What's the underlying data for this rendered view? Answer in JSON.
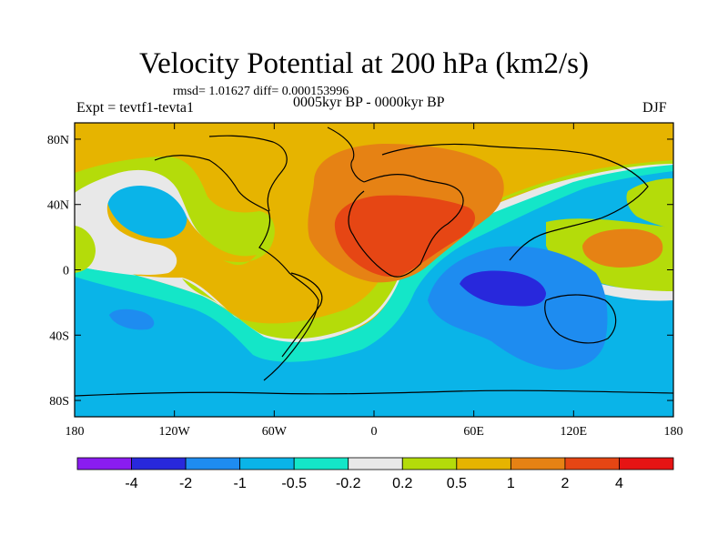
{
  "header": {
    "title": "Velocity Potential at 200 hPa (km2/s)",
    "stats": "rmsd= 1.01627 diff= 0.000153996",
    "experiment": "Expt = tevtf1-tevta1",
    "period": "0005kyr BP - 0000kyr BP",
    "season": "DJF"
  },
  "axes": {
    "lon_ticks": [
      {
        "lon": -180,
        "label": "180"
      },
      {
        "lon": -120,
        "label": "120W"
      },
      {
        "lon": -60,
        "label": "60W"
      },
      {
        "lon": 0,
        "label": "0"
      },
      {
        "lon": 60,
        "label": "60E"
      },
      {
        "lon": 120,
        "label": "120E"
      },
      {
        "lon": 180,
        "label": "180"
      }
    ],
    "lat_ticks": [
      {
        "lat": 80,
        "label": "80N"
      },
      {
        "lat": 40,
        "label": "40N"
      },
      {
        "lat": 0,
        "label": "0"
      },
      {
        "lat": -40,
        "label": "40S"
      },
      {
        "lat": -80,
        "label": "80S"
      }
    ],
    "lon_range": [
      -180,
      180
    ],
    "lat_range": [
      -90,
      90
    ]
  },
  "colorbar": {
    "colors": [
      "#8a1cf0",
      "#2828dc",
      "#1e8cf0",
      "#0ab4e8",
      "#14e6c8",
      "#e8e8e8",
      "#b4dc0a",
      "#e6b400",
      "#e68214",
      "#e64614",
      "#e61414"
    ],
    "labels": [
      "-4",
      "-2",
      "-1",
      "-0.5",
      "-0.2",
      "0.2",
      "0.5",
      "1",
      "2",
      "4"
    ]
  },
  "contour_levels": [
    {
      "name": "level-0.5-1",
      "color": "#e6b400"
    },
    {
      "name": "level-1-2",
      "color": "#e68214"
    },
    {
      "name": "level-2-4",
      "color": "#e64614"
    },
    {
      "name": "level-0.2-0.5",
      "color": "#b4dc0a"
    },
    {
      "name": "level-neg0.2-0.2",
      "color": "#e8e8e8"
    },
    {
      "name": "level-neg0.5-neg0.2",
      "color": "#14e6c8"
    },
    {
      "name": "level-neg1-neg0.5",
      "color": "#0ab4e8"
    },
    {
      "name": "level-neg2-neg1",
      "color": "#1e8cf0"
    },
    {
      "name": "level-neg4-neg2",
      "color": "#2828dc"
    }
  ]
}
